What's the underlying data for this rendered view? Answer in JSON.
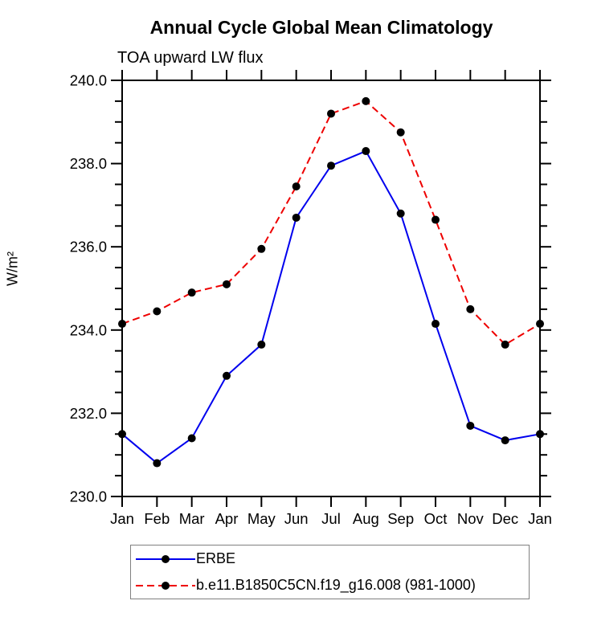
{
  "title": "Annual Cycle Global Mean Climatology",
  "subtitle": "TOA upward LW flux",
  "ylabel": "W/m²",
  "chart_data": {
    "type": "line",
    "title": "Annual Cycle Global Mean Climatology",
    "subtitle": "TOA upward LW flux",
    "xlabel": "",
    "ylabel": "W/m²",
    "categories": [
      "Jan",
      "Feb",
      "Mar",
      "Apr",
      "May",
      "Jun",
      "Jul",
      "Aug",
      "Sep",
      "Oct",
      "Nov",
      "Dec",
      "Jan"
    ],
    "series": [
      {
        "name": "ERBE",
        "color": "#0000ee",
        "line_style": "solid",
        "marker": "circle",
        "marker_color": "#000000",
        "values": [
          231.5,
          230.8,
          231.4,
          232.9,
          233.65,
          236.7,
          237.95,
          238.3,
          236.8,
          234.15,
          231.7,
          231.35,
          231.5
        ]
      },
      {
        "name": "b.e11.B1850C5CN.f19_g16.008 (981-1000)",
        "color": "#ee0000",
        "line_style": "dashed",
        "marker": "circle",
        "marker_color": "#000000",
        "values": [
          234.15,
          234.45,
          234.9,
          235.1,
          235.95,
          237.45,
          239.2,
          239.5,
          238.75,
          236.65,
          234.5,
          233.65,
          234.15
        ]
      }
    ],
    "ylim": [
      230.0,
      240.0
    ],
    "yticks": [
      230,
      232,
      234,
      236,
      238,
      240
    ],
    "ytick_labels": [
      "230.0",
      "232.0",
      "234.0",
      "236.0",
      "238.0",
      "240.0"
    ],
    "y_minor_interval": 0.5,
    "grid": false,
    "frame": "box",
    "legend_position": "bottom",
    "axis_color": "#000000",
    "legend_border_color": "#808080"
  }
}
